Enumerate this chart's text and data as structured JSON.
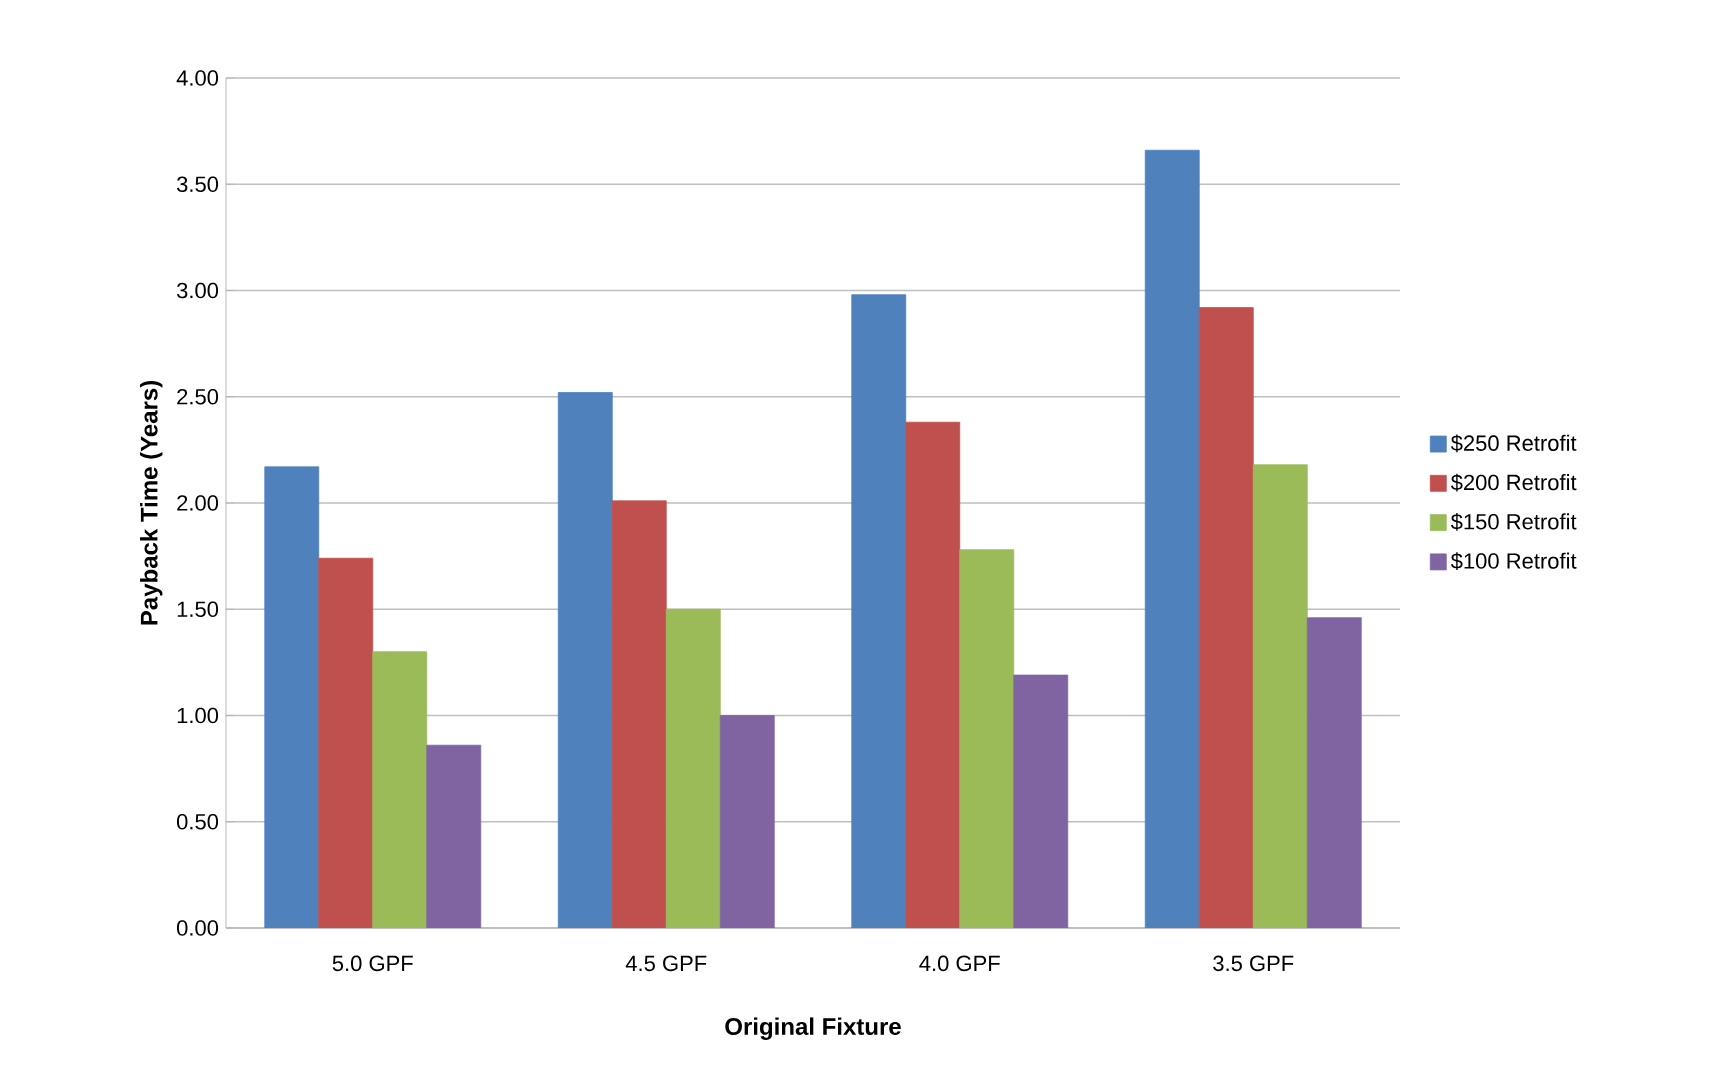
{
  "chart_data": {
    "type": "bar",
    "xlabel": "Original Fixture",
    "ylabel": "Payback Time (Years)",
    "categories": [
      "5.0 GPF",
      "4.5 GPF",
      "4.0 GPF",
      "3.5 GPF"
    ],
    "series": [
      {
        "name": "$250 Retrofit",
        "color": "#4f81bd",
        "values": [
          2.17,
          2.52,
          2.98,
          3.66
        ]
      },
      {
        "name": "$200 Retrofit",
        "color": "#c0504d",
        "values": [
          1.74,
          2.01,
          2.38,
          2.92
        ]
      },
      {
        "name": "$150 Retrofit",
        "color": "#9bbb59",
        "values": [
          1.3,
          1.5,
          1.78,
          2.18
        ]
      },
      {
        "name": "$100 Retrofit",
        "color": "#8064a2",
        "values": [
          0.86,
          1.0,
          1.19,
          1.46
        ]
      }
    ],
    "ylim": [
      0,
      4
    ],
    "yticks": [
      {
        "value": 0,
        "label": "0.00"
      },
      {
        "value": 0.5,
        "label": "0.50"
      },
      {
        "value": 1,
        "label": "1.00"
      },
      {
        "value": 1.5,
        "label": "1.50"
      },
      {
        "value": 2,
        "label": "2.00"
      },
      {
        "value": 2.5,
        "label": "2.50"
      },
      {
        "value": 3,
        "label": "3.00"
      },
      {
        "value": 3.5,
        "label": "3.50"
      },
      {
        "value": 4,
        "label": "4.00"
      }
    ],
    "grid": "y",
    "legend": "right"
  }
}
